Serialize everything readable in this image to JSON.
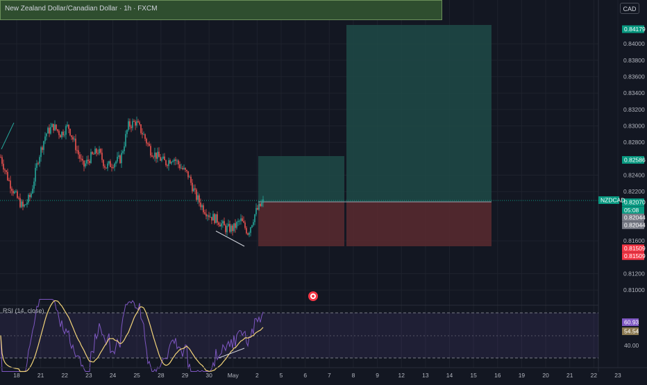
{
  "header": {
    "title": "New Zealand Dollar/Canadian Dollar · 1h · FXCM",
    "currency": "CAD"
  },
  "price_axis": {
    "ticks": [
      "0.84000",
      "0.83800",
      "0.83600",
      "0.83400",
      "0.83200",
      "0.83000",
      "0.82800",
      "0.82400",
      "0.82200",
      "0.81600",
      "0.81200",
      "0.81000"
    ],
    "tags": [
      {
        "text": "0.84179",
        "value": 0.84179,
        "color": "#089981"
      },
      {
        "text": "0.82586",
        "value": 0.82586,
        "color": "#089981"
      },
      {
        "text": "0.82070",
        "value": 0.8207,
        "color": "#089981"
      },
      {
        "text": "05:08",
        "value": 0.81975,
        "color": "#089981"
      },
      {
        "text": "0.82044",
        "value": 0.81885,
        "color": "#787b86"
      },
      {
        "text": "0.82044",
        "value": 0.8179,
        "color": "#787b86"
      },
      {
        "text": "0.81509",
        "value": 0.81509,
        "color": "#f23645"
      },
      {
        "text": "0.81509",
        "value": 0.81414,
        "color": "#f23645"
      }
    ],
    "symbol_tag": "NZDCAD"
  },
  "time_axis": {
    "labels": [
      "18",
      "21",
      "22",
      "23",
      "24",
      "25",
      "28",
      "29",
      "30",
      "May",
      "2",
      "5",
      "6",
      "7",
      "8",
      "9",
      "12",
      "13",
      "14",
      "15",
      "16",
      "19",
      "20",
      "21",
      "22",
      "23"
    ]
  },
  "rsi": {
    "label": "RSI (14, close)",
    "value_tag": "60.93",
    "ma_tag": "54.54",
    "level_tag": "40.00"
  },
  "chart_data": {
    "type": "candlestick",
    "symbol": "NZDCAD",
    "interval": "1h",
    "source": "FXCM",
    "ylim": [
      0.809,
      0.8445
    ],
    "last_price": 0.8207,
    "position_short_term": {
      "entry": 0.8207,
      "target": 0.82586,
      "stop": 0.81509
    },
    "position_long_term": {
      "entry": 0.8207,
      "target": 0.84179,
      "stop": 0.81509
    },
    "close_path_keypoints": [
      0.8262,
      0.8235,
      0.8215,
      0.82,
      0.8215,
      0.826,
      0.829,
      0.83,
      0.829,
      0.83,
      0.8275,
      0.825,
      0.8262,
      0.827,
      0.825,
      0.8255,
      0.826,
      0.83,
      0.8305,
      0.829,
      0.827,
      0.8262,
      0.8255,
      0.8262,
      0.825,
      0.824,
      0.8215,
      0.82,
      0.819,
      0.8185,
      0.8175,
      0.8175,
      0.8185,
      0.817,
      0.8195,
      0.8207
    ],
    "rsi_levels": [
      70,
      50,
      30
    ]
  }
}
